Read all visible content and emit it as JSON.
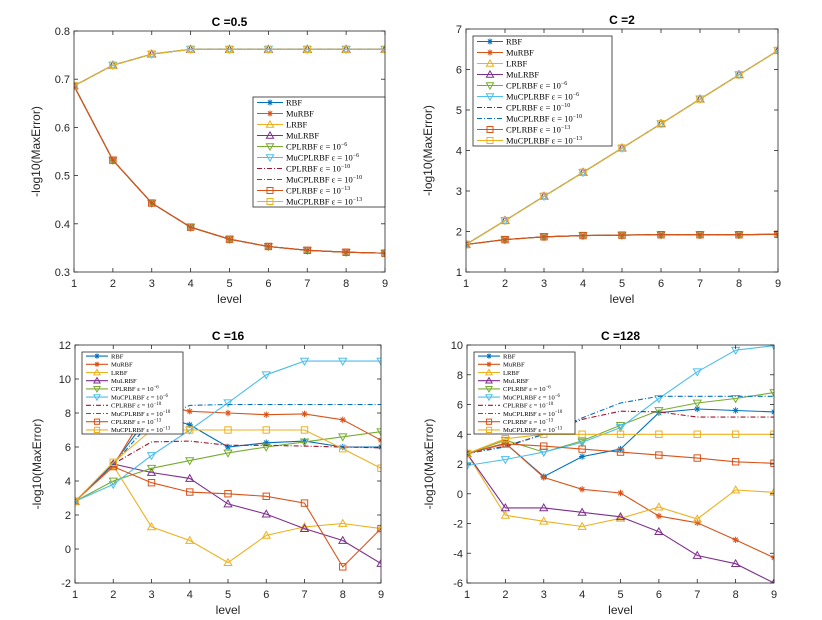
{
  "chart_data": [
    {
      "type": "line",
      "title": "C =0.5",
      "xlabel": "level",
      "ylabel": "-log10(MaxError)",
      "xlim": [
        1,
        9
      ],
      "ylim": [
        0.3,
        0.8
      ],
      "xticks": [
        1,
        2,
        3,
        4,
        5,
        6,
        7,
        8,
        9
      ],
      "yticks": [
        0.3,
        0.4,
        0.5,
        0.6,
        0.7,
        0.8
      ],
      "ytick_labels": [
        "0.3",
        "0.4",
        "0.5",
        "0.6",
        "0.7",
        "0.8"
      ],
      "legend_position": "center-right",
      "x": [
        1,
        2,
        3,
        4,
        5,
        6,
        7,
        8,
        9
      ],
      "series": [
        {
          "name": "RBF",
          "values": [
            0.686,
            0.532,
            0.443,
            0.393,
            0.368,
            0.353,
            0.345,
            0.341,
            0.339
          ]
        },
        {
          "name": "MuRBF",
          "values": [
            0.686,
            0.532,
            0.443,
            0.393,
            0.368,
            0.353,
            0.345,
            0.341,
            0.339
          ]
        },
        {
          "name": "LRBF",
          "values": [
            0.686,
            0.729,
            0.752,
            0.762,
            0.762,
            0.762,
            0.762,
            0.762,
            0.762
          ]
        },
        {
          "name": "MuLRBF",
          "values": [
            0.686,
            0.729,
            0.752,
            0.762,
            0.762,
            0.762,
            0.762,
            0.762,
            0.762
          ]
        },
        {
          "name": "CPLRBF ε = 10^-6",
          "values": [
            0.686,
            0.532,
            0.443,
            0.393,
            0.368,
            0.353,
            0.345,
            0.341,
            0.339
          ]
        },
        {
          "name": "MuCPLRBF ε = 10^-6",
          "values": [
            0.686,
            0.729,
            0.752,
            0.762,
            0.762,
            0.762,
            0.762,
            0.762,
            0.762
          ]
        },
        {
          "name": "CPLRBF ε = 10^-10",
          "values": [
            0.686,
            0.532,
            0.443,
            0.393,
            0.368,
            0.353,
            0.345,
            0.341,
            0.339
          ]
        },
        {
          "name": "MuCPLRBF ε = 10^-10",
          "values": [
            0.686,
            0.729,
            0.752,
            0.762,
            0.762,
            0.762,
            0.762,
            0.762,
            0.762
          ]
        },
        {
          "name": "CPLRBF ε = 10^-13",
          "values": [
            0.686,
            0.532,
            0.443,
            0.393,
            0.368,
            0.353,
            0.345,
            0.341,
            0.339
          ]
        },
        {
          "name": "MuCPLRBF ε = 10^-13",
          "values": [
            0.686,
            0.729,
            0.752,
            0.762,
            0.762,
            0.762,
            0.762,
            0.762,
            0.762
          ]
        }
      ]
    },
    {
      "type": "line",
      "title": "C =2",
      "xlabel": "level",
      "ylabel": "-log10(MaxError)",
      "xlim": [
        1,
        9
      ],
      "ylim": [
        1,
        7
      ],
      "xticks": [
        1,
        2,
        3,
        4,
        5,
        6,
        7,
        8,
        9
      ],
      "yticks": [
        1,
        2,
        3,
        4,
        5,
        6,
        7
      ],
      "ytick_labels": [
        "1",
        "2",
        "3",
        "4",
        "5",
        "6",
        "7"
      ],
      "legend_position": "top-left",
      "x": [
        1,
        2,
        3,
        4,
        5,
        6,
        7,
        8,
        9
      ],
      "series": [
        {
          "name": "RBF",
          "values": [
            1.68,
            1.8,
            1.87,
            1.9,
            1.91,
            1.92,
            1.92,
            1.92,
            1.93
          ]
        },
        {
          "name": "MuRBF",
          "values": [
            1.68,
            1.8,
            1.87,
            1.9,
            1.91,
            1.92,
            1.92,
            1.92,
            1.93
          ]
        },
        {
          "name": "LRBF",
          "values": [
            1.68,
            2.27,
            2.87,
            3.46,
            4.06,
            4.66,
            5.27,
            5.87,
            6.47
          ]
        },
        {
          "name": "MuLRBF",
          "values": [
            1.68,
            2.27,
            2.87,
            3.46,
            4.06,
            4.66,
            5.27,
            5.87,
            6.47
          ]
        },
        {
          "name": "CPLRBF ε = 10^-6",
          "values": [
            1.68,
            1.8,
            1.87,
            1.9,
            1.91,
            1.92,
            1.92,
            1.92,
            1.93
          ]
        },
        {
          "name": "MuCPLRBF ε = 10^-6",
          "values": [
            1.68,
            2.27,
            2.87,
            3.46,
            4.06,
            4.66,
            5.27,
            5.87,
            6.47
          ]
        },
        {
          "name": "CPLRBF ε = 10^-10",
          "values": [
            1.68,
            1.8,
            1.87,
            1.9,
            1.91,
            1.92,
            1.92,
            1.92,
            1.93
          ]
        },
        {
          "name": "MuCPLRBF ε = 10^-10",
          "values": [
            1.68,
            2.27,
            2.87,
            3.46,
            4.06,
            4.66,
            5.27,
            5.87,
            6.47
          ]
        },
        {
          "name": "CPLRBF ε = 10^-13",
          "values": [
            1.68,
            1.8,
            1.87,
            1.9,
            1.91,
            1.92,
            1.92,
            1.92,
            1.93
          ]
        },
        {
          "name": "MuCPLRBF ε = 10^-13",
          "values": [
            1.68,
            2.27,
            2.87,
            3.46,
            4.06,
            4.66,
            5.27,
            5.87,
            6.47
          ]
        }
      ]
    },
    {
      "type": "line",
      "title": "C =16",
      "xlabel": "level",
      "ylabel": "-log10(MaxError)",
      "xlim": [
        1,
        9
      ],
      "ylim": [
        -2,
        12
      ],
      "xticks": [
        1,
        2,
        3,
        4,
        5,
        6,
        7,
        8,
        9
      ],
      "yticks": [
        -2,
        0,
        2,
        4,
        6,
        8,
        10,
        12
      ],
      "ytick_labels": [
        "-2",
        "0",
        "2",
        "4",
        "6",
        "8",
        "10",
        "12"
      ],
      "legend_position": "top-left",
      "x": [
        1,
        2,
        3,
        4,
        5,
        6,
        7,
        8,
        9
      ],
      "series": [
        {
          "name": "RBF",
          "values": [
            2.8,
            5.0,
            8.0,
            7.3,
            6.0,
            6.25,
            6.35,
            6.0,
            6.0
          ]
        },
        {
          "name": "MuRBF",
          "values": [
            2.8,
            4.9,
            8.6,
            8.1,
            8.0,
            7.9,
            7.95,
            7.6,
            6.4
          ]
        },
        {
          "name": "LRBF",
          "values": [
            2.8,
            4.9,
            1.3,
            0.5,
            -0.8,
            0.8,
            1.3,
            1.5,
            1.2
          ]
        },
        {
          "name": "MuLRBF",
          "values": [
            2.8,
            5.0,
            4.5,
            4.15,
            2.65,
            2.05,
            1.2,
            0.5,
            -0.85
          ]
        },
        {
          "name": "CPLRBF ε = 10^-6",
          "values": [
            2.8,
            4.0,
            4.75,
            5.2,
            5.65,
            6.0,
            6.3,
            6.6,
            6.9
          ]
        },
        {
          "name": "MuCPLRBF ε = 10^-6",
          "values": [
            2.8,
            3.8,
            5.5,
            7.0,
            8.6,
            10.25,
            11.05,
            11.05,
            11.05
          ]
        },
        {
          "name": "CPLRBF ε = 10^-10",
          "values": [
            2.8,
            5.0,
            6.3,
            6.35,
            6.1,
            6.1,
            6.05,
            6.0,
            5.95
          ]
        },
        {
          "name": "MuCPLRBF ε = 10^-10",
          "values": [
            2.8,
            5.0,
            7.5,
            8.45,
            8.5,
            8.5,
            8.5,
            8.5,
            8.5
          ]
        },
        {
          "name": "CPLRBF ε = 10^-13",
          "values": [
            2.8,
            4.85,
            3.9,
            3.35,
            3.25,
            3.1,
            2.7,
            -1.05,
            1.2
          ]
        },
        {
          "name": "MuCPLRBF ε = 10^-13",
          "values": [
            2.8,
            5.1,
            7.0,
            7.0,
            7.0,
            7.0,
            7.0,
            5.9,
            4.75
          ]
        }
      ]
    },
    {
      "type": "line",
      "title": "C =128",
      "xlabel": "level",
      "ylabel": "-log10(MaxError)",
      "xlim": [
        1,
        9
      ],
      "ylim": [
        -6,
        10
      ],
      "xticks": [
        1,
        2,
        3,
        4,
        5,
        6,
        7,
        8,
        9
      ],
      "yticks": [
        -6,
        -4,
        -2,
        0,
        2,
        4,
        6,
        8,
        10
      ],
      "ytick_labels": [
        "-6",
        "-4",
        "-2",
        "0",
        "2",
        "4",
        "6",
        "8",
        "10"
      ],
      "legend_position": "top-left",
      "x": [
        1,
        2,
        3,
        4,
        5,
        6,
        7,
        8,
        9
      ],
      "series": [
        {
          "name": "RBF",
          "values": [
            2.7,
            3.4,
            1.15,
            2.5,
            3.0,
            5.45,
            5.7,
            5.6,
            5.5
          ]
        },
        {
          "name": "MuRBF",
          "values": [
            2.7,
            3.4,
            1.1,
            0.3,
            0.05,
            -1.5,
            -1.95,
            -3.1,
            -4.3
          ]
        },
        {
          "name": "LRBF",
          "values": [
            2.7,
            -1.45,
            -1.85,
            -2.2,
            -1.65,
            -0.9,
            -1.7,
            0.25,
            0.1
          ]
        },
        {
          "name": "MuLRBF",
          "values": [
            2.7,
            -0.95,
            -0.95,
            -1.25,
            -1.55,
            -2.55,
            -4.15,
            -4.7,
            -6.0
          ]
        },
        {
          "name": "CPLRBF ε = 10^-6",
          "values": [
            2.7,
            3.6,
            2.8,
            3.55,
            4.6,
            5.6,
            6.1,
            6.4,
            6.8
          ]
        },
        {
          "name": "MuCPLRBF ε = 10^-6",
          "values": [
            1.9,
            2.3,
            2.8,
            3.45,
            4.45,
            6.4,
            8.2,
            9.65,
            9.95
          ]
        },
        {
          "name": "CPLRBF ε = 10^-10",
          "values": [
            2.7,
            3.2,
            4.0,
            5.0,
            5.55,
            5.5,
            5.15,
            5.15,
            5.15
          ]
        },
        {
          "name": "MuCPLRBF ε = 10^-10",
          "values": [
            2.7,
            3.15,
            4.0,
            5.1,
            6.1,
            6.55,
            6.55,
            6.55,
            6.55
          ]
        },
        {
          "name": "CPLRBF ε = 10^-13",
          "values": [
            2.7,
            3.35,
            3.2,
            3.0,
            2.8,
            2.6,
            2.4,
            2.15,
            2.05
          ]
        },
        {
          "name": "MuCPLRBF ε = 10^-13",
          "values": [
            2.7,
            3.7,
            4.0,
            4.0,
            4.0,
            4.0,
            4.0,
            4.0,
            4.0
          ]
        }
      ]
    }
  ],
  "legend_entries": [
    {
      "base": "RBF",
      "sup": ""
    },
    {
      "base": "MuRBF",
      "sup": ""
    },
    {
      "base": "LRBF",
      "sup": ""
    },
    {
      "base": "MuLRBF",
      "sup": ""
    },
    {
      "base": "CPLRBF ε = 10",
      "sup": "−6"
    },
    {
      "base": "MuCPLRBF ε = 10",
      "sup": "−6"
    },
    {
      "base": "CPLRBF ε = 10",
      "sup": "−10"
    },
    {
      "base": "MuCPLRBF ε = 10",
      "sup": "−10"
    },
    {
      "base": "CPLRBF ε = 10",
      "sup": "−13"
    },
    {
      "base": "MuCPLRBF ε = 10",
      "sup": "−13"
    }
  ],
  "series_styles": [
    {
      "color": "#0072BD",
      "marker": "asterisk",
      "dash": ""
    },
    {
      "color": "#D95319",
      "marker": "asterisk",
      "dash": ""
    },
    {
      "color": "#EDB120",
      "marker": "triangle-up",
      "dash": ""
    },
    {
      "color": "#7E2F8E",
      "marker": "triangle-up",
      "dash": ""
    },
    {
      "color": "#77AC30",
      "marker": "triangle-down",
      "dash": ""
    },
    {
      "color": "#4DBEEE",
      "marker": "triangle-down",
      "dash": ""
    },
    {
      "color": "#A2142F",
      "marker": "none",
      "dash": "dashdot"
    },
    {
      "color": "#0072BD",
      "marker": "none",
      "dash": "dashdot"
    },
    {
      "color": "#D95319",
      "marker": "square",
      "dash": ""
    },
    {
      "color": "#EDB120",
      "marker": "square",
      "dash": ""
    }
  ]
}
